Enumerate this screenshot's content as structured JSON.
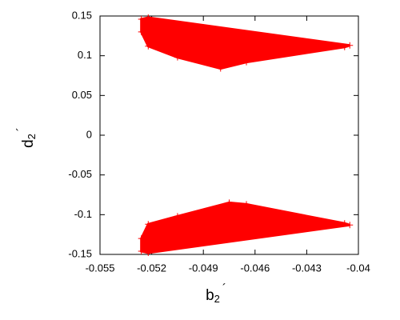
{
  "chart_data": {
    "type": "scatter",
    "x_label": "b",
    "x_label_sub": "2",
    "x_label_prime": "´",
    "y_label": "d",
    "y_label_sub": "2",
    "y_label_prime": "´",
    "xlim": [
      -0.055,
      -0.04
    ],
    "xticks": [
      -0.055,
      -0.052,
      -0.049,
      -0.046,
      -0.043,
      -0.04
    ],
    "ylim": [
      -0.15,
      0.15
    ],
    "yticks": [
      -0.15,
      -0.1,
      -0.05,
      0,
      0.05,
      0.1,
      0.15
    ],
    "marker": "+",
    "filled_region": true,
    "series": [
      {
        "color": "#ff0000",
        "x": [
          -0.0526,
          -0.0522,
          -0.0405,
          -0.0408,
          -0.0465,
          -0.048,
          -0.0505,
          -0.0522,
          -0.0526
        ],
        "y": [
          0.146,
          0.148,
          0.113,
          0.111,
          0.092,
          0.084,
          0.098,
          0.112,
          0.13
        ]
      },
      {
        "color": "#ff0000",
        "x": [
          -0.0526,
          -0.0522,
          -0.0405,
          -0.0408,
          -0.0465,
          -0.0475,
          -0.0505,
          -0.0522,
          -0.0526
        ],
        "y": [
          -0.146,
          -0.148,
          -0.113,
          -0.111,
          -0.087,
          -0.085,
          -0.102,
          -0.112,
          -0.13
        ]
      }
    ]
  }
}
